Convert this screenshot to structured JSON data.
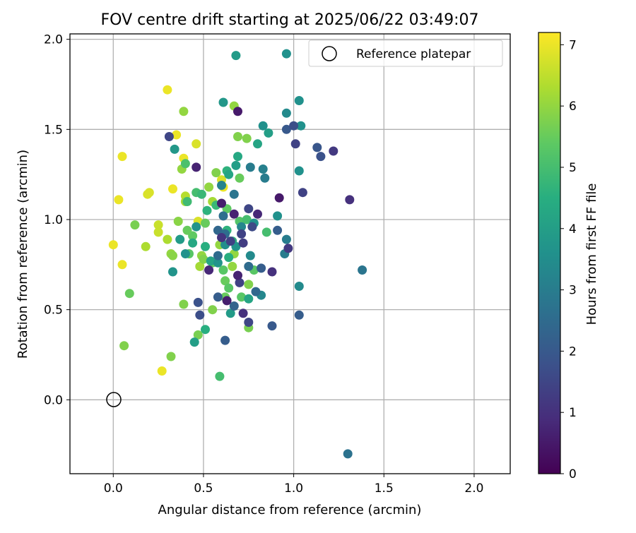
{
  "chart_data": {
    "type": "scatter",
    "title": "FOV centre drift starting at 2025/06/22 03:49:07",
    "xlabel": "Angular distance from reference (arcmin)",
    "ylabel": "Rotation from reference (arcmin)",
    "xlim": [
      -0.24,
      2.2
    ],
    "ylim": [
      -0.41,
      2.03
    ],
    "xticks": [
      "0.0",
      "0.5",
      "1.0",
      "1.5",
      "2.0"
    ],
    "yticks": [
      "0.0",
      "0.5",
      "1.0",
      "1.5",
      "2.0"
    ],
    "grid": true,
    "legend": {
      "position": "top-right",
      "entries": [
        "Reference platepar"
      ]
    },
    "reference_point": {
      "x": 0.0,
      "y": 0.0,
      "label": "Reference platepar"
    },
    "colorbar": {
      "label": "Hours from first FF file",
      "colormap": "viridis",
      "range": [
        0,
        7.2
      ],
      "ticks": [
        "0",
        "1",
        "2",
        "3",
        "4",
        "5",
        "6",
        "7"
      ]
    },
    "series": [
      {
        "color_by": "hours",
        "points": [
          [
            0.3,
            1.72,
            7.0
          ],
          [
            0.35,
            1.47,
            7.0
          ],
          [
            0.05,
            1.35,
            7.0
          ],
          [
            0.03,
            1.11,
            7.0
          ],
          [
            0.0,
            0.86,
            7.0
          ],
          [
            0.05,
            0.75,
            7.0
          ],
          [
            0.27,
            0.16,
            7.0
          ],
          [
            0.19,
            1.14,
            6.8
          ],
          [
            0.2,
            1.15,
            6.8
          ],
          [
            0.33,
            1.17,
            7.0
          ],
          [
            0.39,
            1.34,
            7.0
          ],
          [
            0.46,
            1.42,
            6.8
          ],
          [
            0.25,
            0.97,
            6.6
          ],
          [
            0.25,
            0.93,
            6.6
          ],
          [
            0.18,
            0.85,
            6.3
          ],
          [
            0.3,
            0.89,
            6.3
          ],
          [
            0.47,
            0.99,
            6.8
          ],
          [
            0.61,
            1.18,
            7.0
          ],
          [
            0.6,
            1.22,
            6.8
          ],
          [
            0.4,
            1.13,
            6.4
          ],
          [
            0.4,
            1.1,
            6.2
          ],
          [
            0.39,
            1.6,
            6.0
          ],
          [
            0.67,
            1.63,
            6.0
          ],
          [
            0.38,
            1.28,
            6.0
          ],
          [
            0.57,
            1.26,
            5.8
          ],
          [
            0.53,
            1.18,
            6.0
          ],
          [
            0.55,
            1.1,
            6.2
          ],
          [
            0.36,
            0.99,
            5.9
          ],
          [
            0.32,
            0.81,
            6.0
          ],
          [
            0.33,
            0.8,
            5.9
          ],
          [
            0.49,
            0.8,
            6.0
          ],
          [
            0.48,
            0.74,
            6.2
          ],
          [
            0.5,
            0.78,
            5.8
          ],
          [
            0.59,
            0.86,
            6.0
          ],
          [
            0.67,
            0.81,
            6.0
          ],
          [
            0.66,
            0.74,
            6.0
          ],
          [
            0.12,
            0.97,
            5.7
          ],
          [
            0.09,
            0.59,
            5.5
          ],
          [
            0.06,
            0.3,
            5.8
          ],
          [
            0.32,
            0.24,
            5.8
          ],
          [
            0.39,
            0.53,
            5.8
          ],
          [
            0.47,
            0.36,
            5.7
          ],
          [
            0.55,
            0.5,
            5.8
          ],
          [
            0.75,
            0.4,
            5.7
          ],
          [
            0.75,
            0.64,
            5.8
          ],
          [
            0.62,
            0.57,
            5.5
          ],
          [
            0.69,
            1.46,
            5.8
          ],
          [
            0.74,
            1.45,
            5.8
          ],
          [
            0.7,
            1.23,
            5.5
          ],
          [
            0.63,
            1.06,
            5.4
          ],
          [
            0.51,
            0.98,
            5.5
          ],
          [
            0.44,
            0.91,
            5.4
          ],
          [
            0.42,
            0.81,
            5.3
          ],
          [
            0.41,
            0.94,
            5.5
          ],
          [
            0.55,
            0.76,
            5.4
          ],
          [
            0.61,
            0.72,
            5.3
          ],
          [
            0.62,
            0.66,
            5.5
          ],
          [
            0.64,
            0.62,
            5.3
          ],
          [
            0.71,
            0.57,
            5.3
          ],
          [
            0.78,
            0.72,
            5.3
          ],
          [
            0.7,
            0.99,
            5.2
          ],
          [
            0.74,
            1.0,
            5.0
          ],
          [
            0.85,
            0.93,
            5.0
          ],
          [
            0.59,
            0.13,
            5.0
          ],
          [
            0.46,
            1.15,
            5.0
          ],
          [
            0.4,
            1.31,
            5.1
          ],
          [
            0.41,
            1.1,
            4.9
          ],
          [
            0.49,
            1.14,
            4.8
          ],
          [
            0.52,
            1.05,
            4.6
          ],
          [
            0.57,
            1.08,
            4.8
          ],
          [
            0.63,
            1.27,
            4.6
          ],
          [
            0.63,
            0.94,
            4.6
          ],
          [
            0.64,
            0.79,
            4.5
          ],
          [
            0.66,
            0.88,
            4.6
          ],
          [
            0.51,
            0.85,
            4.5
          ],
          [
            0.44,
            0.87,
            4.3
          ],
          [
            0.54,
            0.77,
            4.2
          ],
          [
            0.51,
            0.39,
            4.5
          ],
          [
            0.45,
            0.32,
            4.0
          ],
          [
            0.65,
            0.48,
            3.9
          ],
          [
            0.75,
            0.56,
            4.2
          ],
          [
            0.68,
            1.3,
            4.0
          ],
          [
            0.64,
            1.25,
            4.2
          ],
          [
            0.8,
            1.42,
            4.2
          ],
          [
            0.86,
            1.48,
            4.0
          ],
          [
            0.69,
            1.35,
            4.3
          ],
          [
            0.61,
            1.65,
            3.8
          ],
          [
            0.68,
            1.91,
            3.9
          ],
          [
            0.96,
            1.92,
            3.6
          ],
          [
            1.03,
            1.66,
            3.6
          ],
          [
            0.96,
            1.59,
            3.4
          ],
          [
            1.04,
            1.52,
            3.6
          ],
          [
            0.83,
            1.52,
            3.6
          ],
          [
            0.34,
            1.39,
            3.8
          ],
          [
            0.37,
            0.89,
            3.9
          ],
          [
            0.33,
            0.71,
            3.7
          ],
          [
            0.4,
            0.81,
            3.6
          ],
          [
            0.46,
            0.96,
            3.7
          ],
          [
            0.58,
            0.76,
            3.7
          ],
          [
            0.62,
            0.86,
            3.5
          ],
          [
            0.68,
            0.85,
            3.7
          ],
          [
            0.76,
            0.8,
            3.4
          ],
          [
            0.91,
            1.02,
            3.6
          ],
          [
            1.03,
            1.27,
            3.6
          ],
          [
            1.03,
            0.63,
            3.4
          ],
          [
            0.82,
            0.58,
            3.3
          ],
          [
            0.78,
            0.98,
            3.6
          ],
          [
            0.71,
            0.96,
            3.3
          ],
          [
            0.6,
            1.19,
            3.2
          ],
          [
            0.76,
            1.29,
            3.0
          ],
          [
            0.84,
            1.23,
            3.0
          ],
          [
            0.83,
            1.28,
            3.1
          ],
          [
            0.95,
            0.81,
            3.0
          ],
          [
            0.96,
            0.89,
            3.0
          ],
          [
            1.38,
            0.72,
            2.8
          ],
          [
            1.3,
            -0.3,
            2.7
          ],
          [
            0.67,
            1.14,
            2.8
          ],
          [
            0.61,
            1.02,
            2.6
          ],
          [
            0.58,
            0.8,
            2.5
          ],
          [
            0.58,
            0.94,
            2.4
          ],
          [
            0.62,
            0.92,
            2.6
          ],
          [
            0.75,
            0.74,
            2.5
          ],
          [
            0.79,
            0.6,
            2.4
          ],
          [
            0.82,
            0.73,
            2.1
          ],
          [
            0.67,
            0.52,
            2.3
          ],
          [
            0.58,
            0.57,
            2.1
          ],
          [
            0.62,
            0.33,
            2.1
          ],
          [
            0.88,
            0.41,
            2.0
          ],
          [
            1.03,
            0.47,
            2.1
          ],
          [
            0.48,
            0.47,
            1.7
          ],
          [
            0.47,
            0.54,
            1.8
          ],
          [
            0.91,
            0.94,
            2.1
          ],
          [
            0.96,
            1.5,
            2.0
          ],
          [
            1.0,
            1.52,
            1.7
          ],
          [
            1.13,
            1.4,
            1.9
          ],
          [
            1.15,
            1.35,
            1.8
          ],
          [
            1.22,
            1.38,
            1.2
          ],
          [
            1.01,
            1.42,
            1.4
          ],
          [
            1.05,
            1.15,
            1.4
          ],
          [
            0.31,
            1.46,
            1.5
          ],
          [
            0.75,
            1.06,
            1.5
          ],
          [
            0.77,
            0.96,
            1.6
          ],
          [
            0.71,
            0.92,
            1.4
          ],
          [
            0.65,
            0.88,
            1.4
          ],
          [
            0.6,
            0.9,
            1.1
          ],
          [
            0.72,
            0.87,
            1.3
          ],
          [
            0.7,
            0.65,
            1.4
          ],
          [
            0.75,
            0.43,
            1.5
          ],
          [
            0.72,
            0.48,
            1.0
          ],
          [
            0.97,
            0.84,
            1.2
          ],
          [
            0.88,
            0.71,
            1.0
          ],
          [
            1.31,
            1.11,
            1.0
          ],
          [
            0.92,
            1.12,
            0.5
          ],
          [
            0.8,
            1.03,
            0.8
          ],
          [
            0.67,
            1.03,
            0.7
          ],
          [
            0.6,
            1.09,
            0.6
          ],
          [
            0.46,
            1.29,
            0.7
          ],
          [
            0.69,
            1.6,
            0.5
          ],
          [
            0.69,
            0.69,
            0.7
          ],
          [
            0.63,
            0.55,
            0.6
          ],
          [
            0.53,
            0.72,
            0.8
          ]
        ]
      }
    ]
  }
}
